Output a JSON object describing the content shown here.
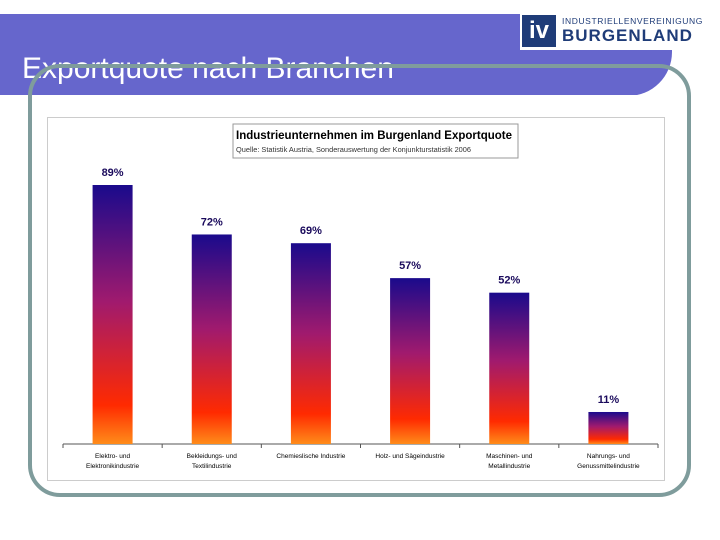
{
  "slide": {
    "title": "Exportquote nach Branchen"
  },
  "logo": {
    "mark": "iv",
    "line1": "INDUSTRIELLENVEREINIGUNG",
    "line2": "BURGENLAND"
  },
  "colors": {
    "header": "#6666cc",
    "frame": "#7f9c9c",
    "bar_top": "#1a0a8c",
    "bar_mid": "#a01a6e",
    "bar_bottom": "#ff2a00",
    "bar_base": "#ff8c1a"
  },
  "chart_data": {
    "type": "bar",
    "title": "Industrieunternehmen im Burgenland Exportquote",
    "subtitle": "Quelle: Statistik Austria, Sonderauswertung der Konjunkturstatistik 2006",
    "categories": [
      [
        "Elektro- und",
        "Elektronikindustrie"
      ],
      [
        "Bekleidungs- und",
        "Textilindustrie"
      ],
      [
        "Chemieslische Industrie"
      ],
      [
        "Holz- und Sägeindustrie"
      ],
      [
        "Maschinen- und",
        "Metallindustrie"
      ],
      [
        "Nahrungs- und",
        "Genussmittelindustrie"
      ]
    ],
    "values": [
      89,
      72,
      69,
      57,
      52,
      11
    ],
    "value_labels": [
      "89%",
      "72%",
      "69%",
      "57%",
      "52%",
      "11%"
    ],
    "ylim": [
      0,
      100
    ]
  }
}
